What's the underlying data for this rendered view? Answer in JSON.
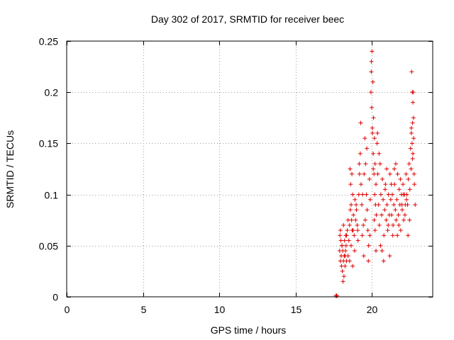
{
  "chart_data": {
    "type": "scatter",
    "title": "Day 302 of 2017, SRMTID for receiver beec",
    "xlabel": "GPS time / hours",
    "ylabel": "SRMTID / TECUs",
    "xlim": [
      0,
      24
    ],
    "ylim": [
      0,
      0.25
    ],
    "xticks": [
      0,
      5,
      10,
      15,
      20
    ],
    "xtick_labels": [
      "0",
      "5",
      "10",
      "15",
      "20"
    ],
    "yticks": [
      0,
      0.05,
      0.1,
      0.15,
      0.2,
      0.25
    ],
    "ytick_labels": [
      "0",
      "0.05",
      "0.1",
      "0.15",
      "0.2",
      "0.25"
    ],
    "grid": true,
    "marker": "+",
    "color": "#e00000",
    "series": [
      {
        "name": "SRMTID",
        "x": [
          17.65,
          17.67,
          17.68,
          17.7,
          17.72,
          17.9,
          17.92,
          17.95,
          17.98,
          18.0,
          18.02,
          18.05,
          18.08,
          18.1,
          18.12,
          18.15,
          18.18,
          18.2,
          18.22,
          18.25,
          18.28,
          18.3,
          18.32,
          18.35,
          18.4,
          18.45,
          18.5,
          17.95,
          18.05,
          18.15,
          18.25,
          18.35,
          18.45,
          18.55,
          18.65,
          18.75,
          18.55,
          18.6,
          18.62,
          18.65,
          18.7,
          18.72,
          18.75,
          18.8,
          18.85,
          18.9,
          18.95,
          19.0,
          19.05,
          19.1,
          19.15,
          19.2,
          18.58,
          18.68,
          18.78,
          18.88,
          18.98,
          19.08,
          19.18,
          19.25,
          19.3,
          19.35,
          19.4,
          19.45,
          19.5,
          19.55,
          19.6,
          19.65,
          19.7,
          19.75,
          19.8,
          19.85,
          19.9,
          19.28,
          19.38,
          19.48,
          19.58,
          19.68,
          19.78,
          19.88,
          19.95,
          19.97,
          20.0,
          20.02,
          20.05,
          20.08,
          20.1,
          20.12,
          20.15,
          20.18,
          20.2,
          20.22,
          20.25,
          20.28,
          20.3,
          19.98,
          20.04,
          20.1,
          20.16,
          20.22,
          20.28,
          20.35,
          20.4,
          20.45,
          20.5,
          20.55,
          20.6,
          20.65,
          20.7,
          20.75,
          20.8,
          20.85,
          20.9,
          20.95,
          21.0,
          21.05,
          21.1,
          21.15,
          21.2,
          20.38,
          20.48,
          20.58,
          20.68,
          20.78,
          20.88,
          20.98,
          21.08,
          21.18,
          21.25,
          21.3,
          21.35,
          21.4,
          21.45,
          21.5,
          21.55,
          21.6,
          21.65,
          21.7,
          21.75,
          21.8,
          21.85,
          21.9,
          21.95,
          22.0,
          22.05,
          22.1,
          22.15,
          22.2,
          21.28,
          21.38,
          21.48,
          21.58,
          21.68,
          21.78,
          21.88,
          21.98,
          22.08,
          22.18,
          22.25,
          22.3,
          22.35,
          22.4,
          22.45,
          22.5,
          22.55,
          22.6,
          22.65,
          22.7,
          22.75,
          22.8,
          22.85,
          22.28,
          22.38,
          22.48,
          22.58,
          22.68,
          22.78,
          22.62,
          22.66,
          22.7,
          22.74,
          22.6,
          22.68,
          22.72
        ],
        "y": [
          0.001,
          0.001,
          0.001,
          0.001,
          0.001,
          0.045,
          0.06,
          0.035,
          0.055,
          0.04,
          0.03,
          0.05,
          0.025,
          0.045,
          0.015,
          0.035,
          0.02,
          0.04,
          0.055,
          0.03,
          0.045,
          0.06,
          0.05,
          0.035,
          0.065,
          0.04,
          0.055,
          0.065,
          0.05,
          0.07,
          0.04,
          0.06,
          0.075,
          0.035,
          0.05,
          0.03,
          0.07,
          0.085,
          0.11,
          0.09,
          0.12,
          0.065,
          0.1,
          0.08,
          0.06,
          0.095,
          0.075,
          0.085,
          0.07,
          0.055,
          0.1,
          0.12,
          0.125,
          0.075,
          0.065,
          0.045,
          0.09,
          0.065,
          0.13,
          0.14,
          0.11,
          0.09,
          0.1,
          0.07,
          0.12,
          0.155,
          0.13,
          0.1,
          0.085,
          0.065,
          0.05,
          0.115,
          0.095,
          0.17,
          0.06,
          0.04,
          0.075,
          0.145,
          0.035,
          0.06,
          0.2,
          0.22,
          0.185,
          0.24,
          0.16,
          0.21,
          0.14,
          0.175,
          0.12,
          0.155,
          0.1,
          0.13,
          0.09,
          0.11,
          0.08,
          0.23,
          0.165,
          0.125,
          0.075,
          0.065,
          0.045,
          0.15,
          0.12,
          0.09,
          0.07,
          0.13,
          0.1,
          0.08,
          0.115,
          0.095,
          0.06,
          0.085,
          0.11,
          0.075,
          0.09,
          0.065,
          0.1,
          0.08,
          0.12,
          0.16,
          0.14,
          0.05,
          0.045,
          0.035,
          0.105,
          0.125,
          0.07,
          0.04,
          0.095,
          0.08,
          0.1,
          0.07,
          0.09,
          0.11,
          0.085,
          0.075,
          0.095,
          0.12,
          0.08,
          0.105,
          0.09,
          0.065,
          0.1,
          0.085,
          0.11,
          0.075,
          0.1,
          0.09,
          0.11,
          0.06,
          0.125,
          0.13,
          0.06,
          0.07,
          0.115,
          0.09,
          0.1,
          0.08,
          0.12,
          0.1,
          0.09,
          0.115,
          0.13,
          0.105,
          0.145,
          0.16,
          0.15,
          0.14,
          0.155,
          0.11,
          0.09,
          0.095,
          0.06,
          0.075,
          0.125,
          0.135,
          0.12,
          0.22,
          0.2,
          0.19,
          0.175,
          0.165,
          0.17,
          0.2
        ]
      }
    ]
  }
}
